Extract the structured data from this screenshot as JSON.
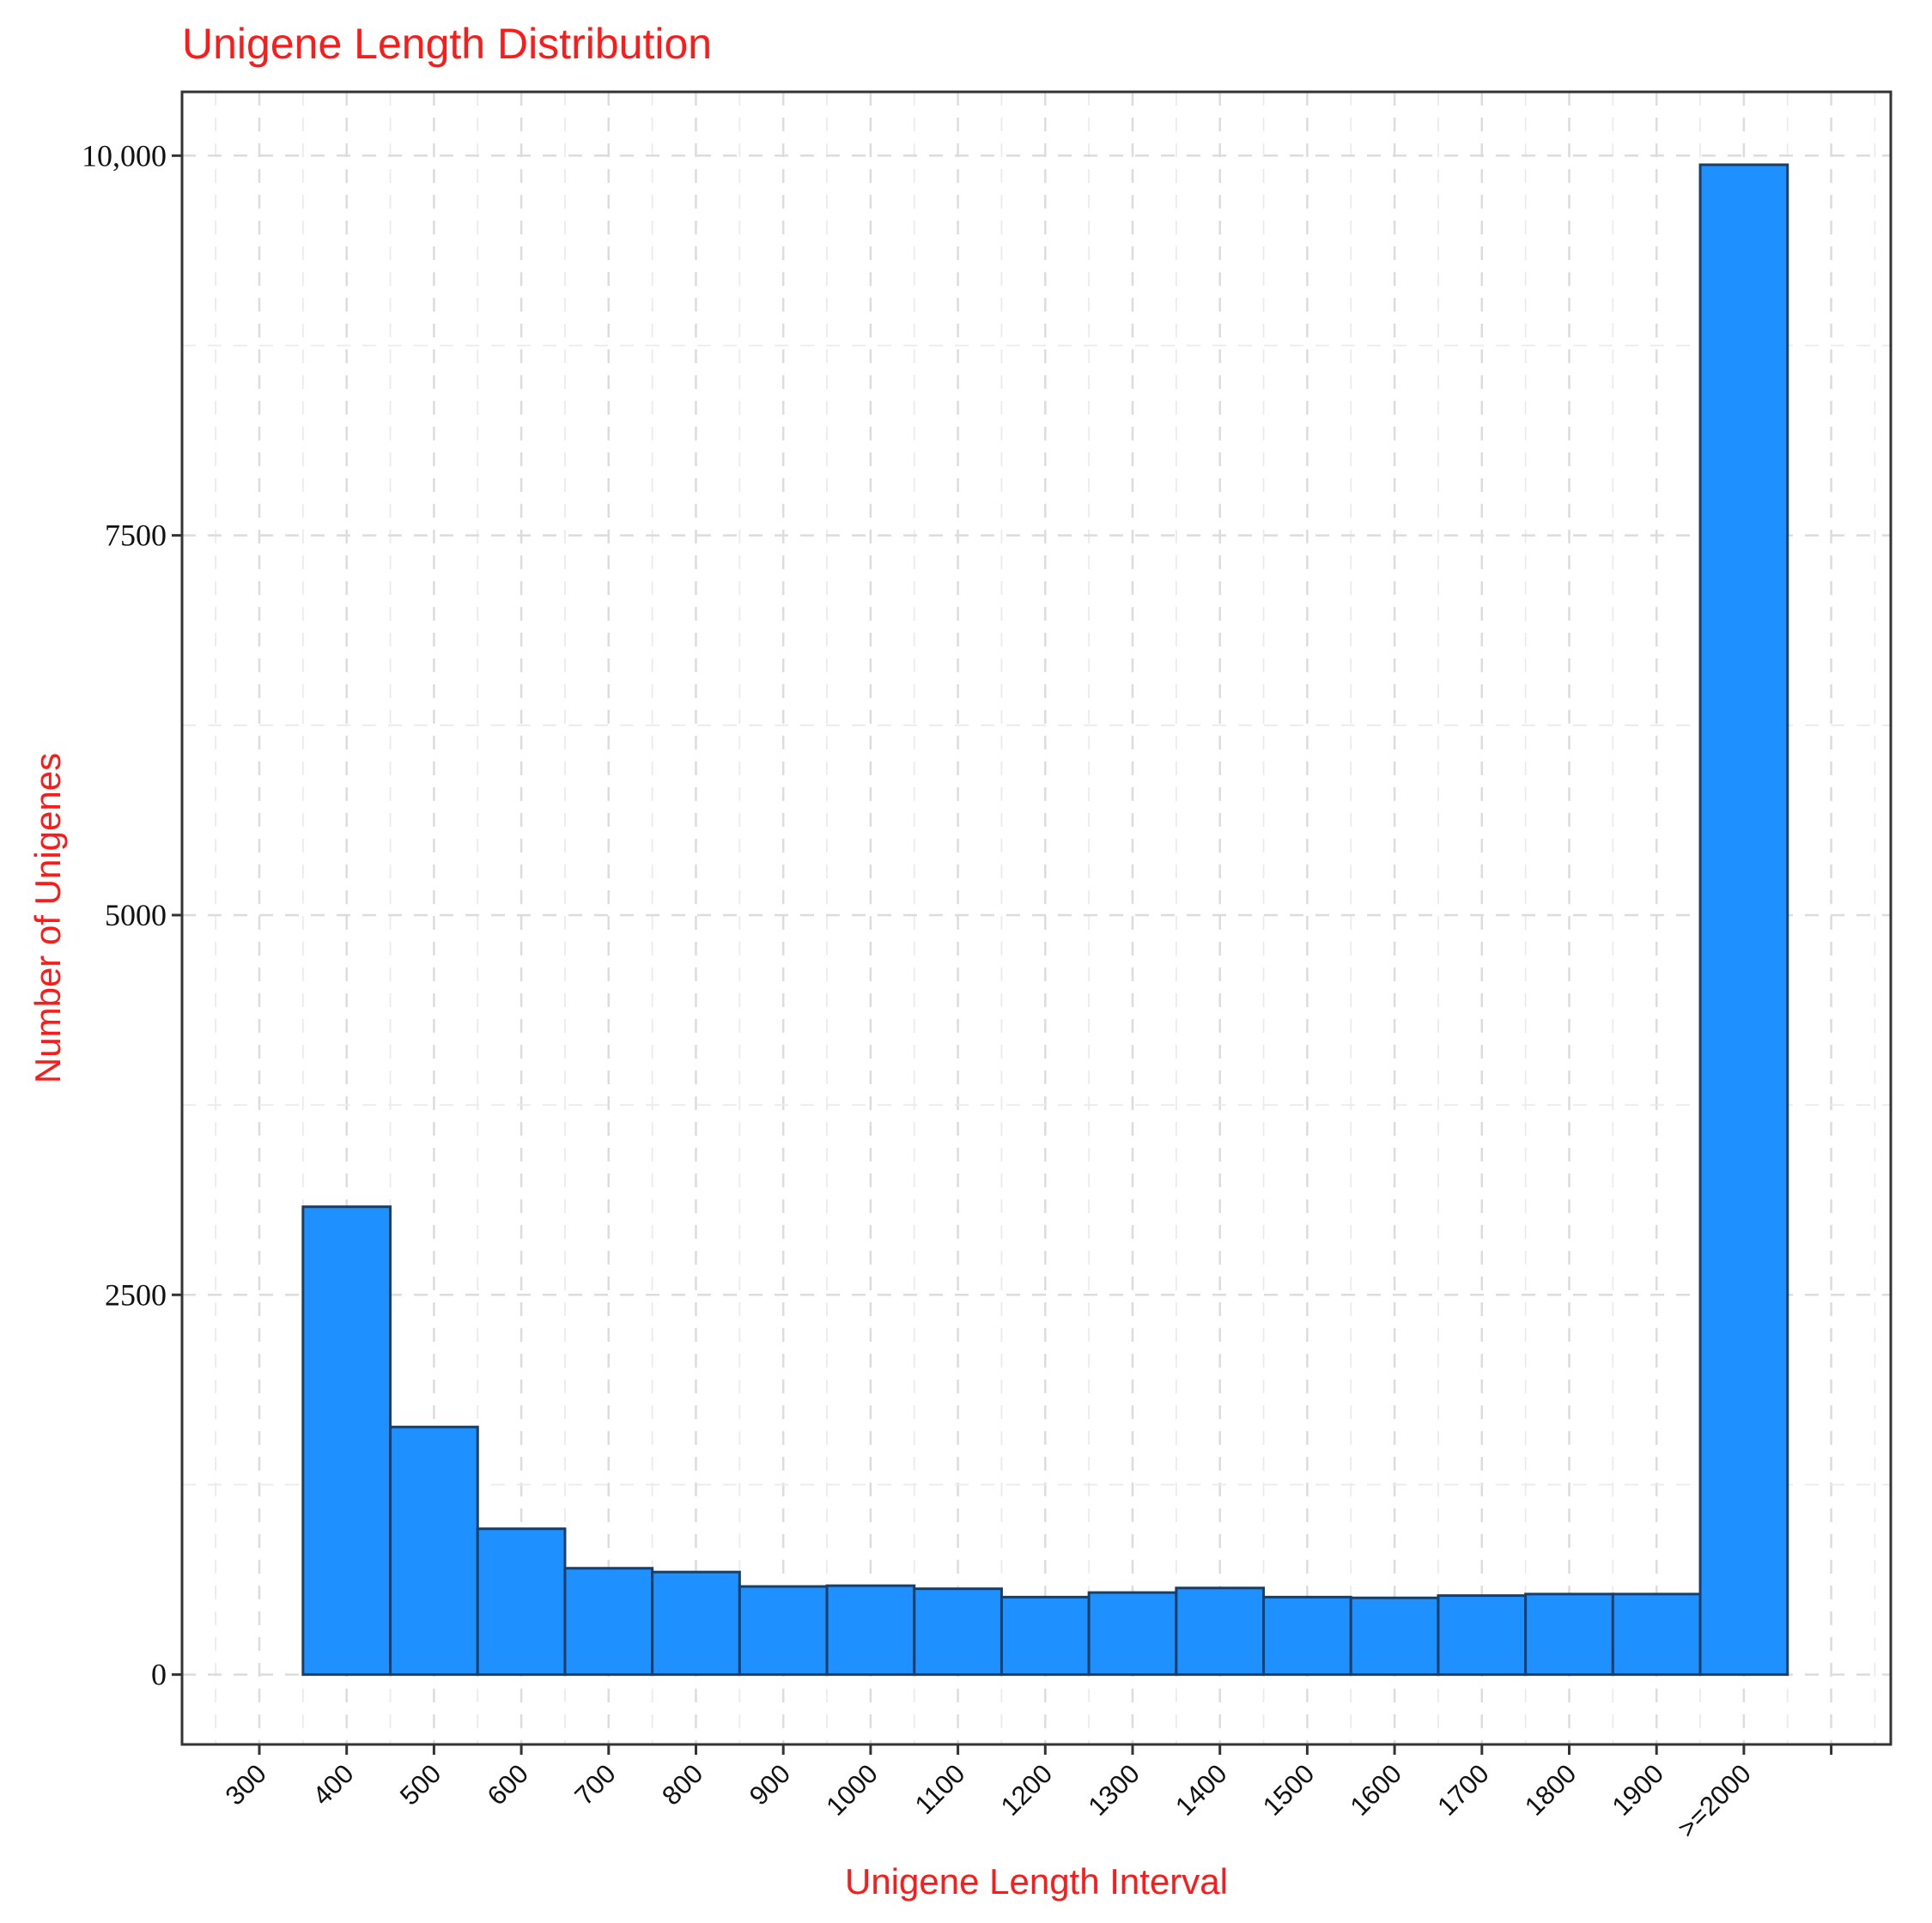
{
  "chart_data": {
    "type": "bar",
    "title": "Unigene Length Distribution",
    "xlabel": "Unigene Length Interval",
    "ylabel": "Number of Unigenes",
    "x_ticks": [
      "300",
      "400",
      "500",
      "600",
      "700",
      "800",
      "900",
      "1000",
      "1100",
      "1200",
      "1300",
      "1400",
      "1500",
      "1600",
      "1700",
      "1800",
      "1900",
      ">=2000"
    ],
    "y_ticks": [
      {
        "value": 0,
        "label": "0"
      },
      {
        "value": 2500,
        "label": "2500"
      },
      {
        "value": 5000,
        "label": "5000"
      },
      {
        "value": 7500,
        "label": "7500"
      },
      {
        "value": 10000,
        "label": "10,000"
      }
    ],
    "categories": [
      "400",
      "500",
      "600",
      "700",
      "800",
      "900",
      "1000",
      "1100",
      "1200",
      "1300",
      "1400",
      "1500",
      "1600",
      "1700",
      "1800",
      "1900",
      ">=2000"
    ],
    "values": [
      3080,
      1630,
      960,
      700,
      675,
      580,
      585,
      565,
      510,
      540,
      570,
      510,
      505,
      520,
      530,
      530,
      9940
    ],
    "ylim": [
      -460,
      10420
    ],
    "grid": true,
    "bar_color": "#1e90ff",
    "bar_edge_color": "#1a3f66"
  }
}
